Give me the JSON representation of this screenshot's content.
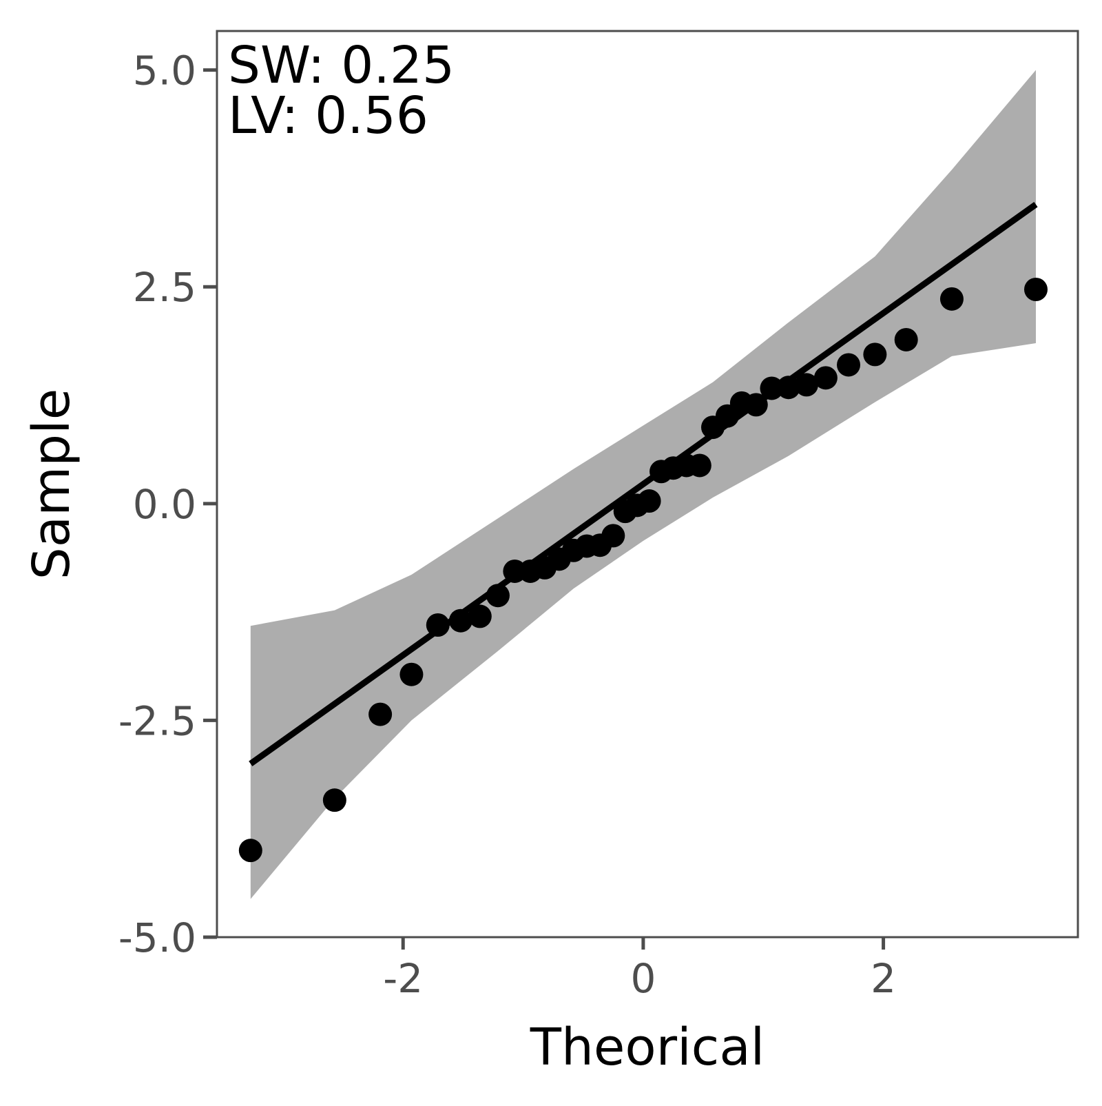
{
  "chart_data": {
    "type": "scatter",
    "title": "",
    "xlabel": "Theorical",
    "ylabel": "Sample",
    "xlim": [
      -3.55,
      3.62
    ],
    "ylim": [
      -5.0,
      5.45
    ],
    "xticks": [
      {
        "value": -2,
        "label": "-2"
      },
      {
        "value": 0,
        "label": "0"
      },
      {
        "value": 2,
        "label": "2"
      }
    ],
    "yticks": [
      {
        "value": -5.0,
        "label": "-5.0"
      },
      {
        "value": -2.5,
        "label": "-2.5"
      },
      {
        "value": 0.0,
        "label": "0.0"
      },
      {
        "value": 2.5,
        "label": "2.5"
      },
      {
        "value": 5.0,
        "label": "5.0"
      }
    ],
    "grid": false,
    "annotations": [
      "SW: 0.25",
      "LV: 0.56"
    ],
    "points": {
      "x": [
        -3.27,
        -2.57,
        -2.19,
        -1.93,
        -1.71,
        -1.52,
        -1.36,
        -1.21,
        -1.07,
        -0.94,
        -0.82,
        -0.7,
        -0.58,
        -0.47,
        -0.36,
        -0.25,
        -0.15,
        -0.05,
        0.05,
        0.15,
        0.25,
        0.36,
        0.47,
        0.58,
        0.7,
        0.82,
        0.94,
        1.07,
        1.21,
        1.36,
        1.52,
        1.71,
        1.93,
        2.19,
        2.57,
        3.27
      ],
      "y": [
        -4.0,
        -3.42,
        -2.43,
        -1.97,
        -1.4,
        -1.35,
        -1.3,
        -1.06,
        -0.78,
        -0.78,
        -0.74,
        -0.64,
        -0.54,
        -0.49,
        -0.48,
        -0.37,
        -0.09,
        -0.02,
        0.03,
        0.37,
        0.41,
        0.44,
        0.44,
        0.88,
        1.01,
        1.16,
        1.14,
        1.33,
        1.34,
        1.37,
        1.45,
        1.6,
        1.72,
        1.89,
        2.36,
        2.47
      ]
    },
    "fit_line": {
      "x": [
        -3.27,
        3.27
      ],
      "y": [
        -3.0,
        3.45
      ]
    },
    "confidence_band": {
      "x": [
        -3.27,
        -2.57,
        -1.93,
        -1.21,
        -0.58,
        0.0,
        0.58,
        1.21,
        1.93,
        2.57,
        3.27
      ],
      "lower": [
        -4.56,
        -3.4,
        -2.5,
        -1.7,
        -0.98,
        -0.43,
        0.07,
        0.55,
        1.17,
        1.7,
        1.85
      ],
      "upper": [
        -1.41,
        -1.23,
        -0.82,
        -0.17,
        0.4,
        0.9,
        1.4,
        2.09,
        2.85,
        3.85,
        5.0
      ]
    },
    "colors": {
      "points": "#000000",
      "fit_line": "#000000",
      "band": "#adadad",
      "panel_border": "#4d4d4d",
      "tick_label": "#4d4d4d"
    }
  }
}
